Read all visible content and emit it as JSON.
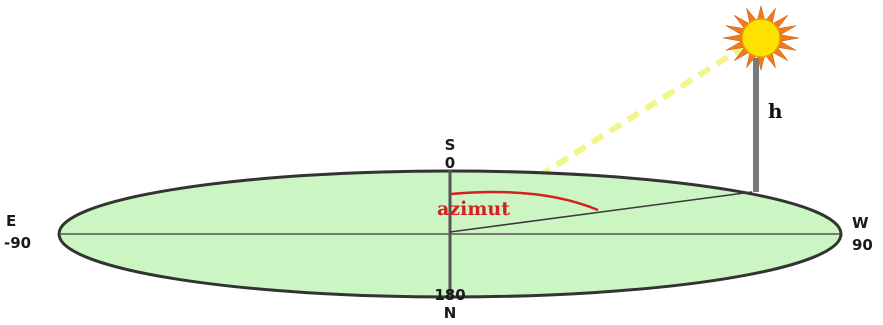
{
  "labels": {
    "south": "S",
    "zero": "0",
    "east": "E",
    "minus_ninety": "-90",
    "west": "W",
    "ninety": "90",
    "one_eighty": "180",
    "north": "N",
    "height": "h",
    "azimuth": "azimut"
  },
  "colors": {
    "plane_fill": "#ccf5c4",
    "plane_stroke": "#333333",
    "sun_core": "#ffe100",
    "sun_rays": "#f07a1c",
    "ray_line": "#f2f58a",
    "azimuth_arc": "#d42020"
  },
  "icons": {
    "sun": "sun-icon"
  }
}
